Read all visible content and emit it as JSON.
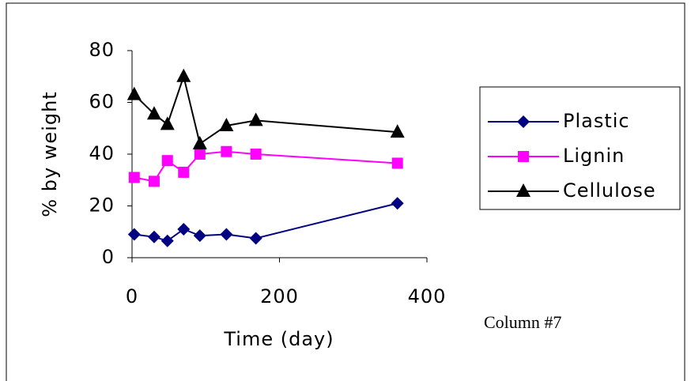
{
  "chart_data": {
    "type": "line",
    "x_label": "Time (day)",
    "y_label": "% by weight",
    "annotation": "Column #7",
    "x": [
      3,
      30,
      48,
      70,
      92,
      128,
      168,
      360
    ],
    "series": [
      {
        "name": "Plastic",
        "color": "#000080",
        "marker": "diamond",
        "values": [
          9,
          8,
          6.5,
          11,
          8.5,
          9,
          7.5,
          21
        ]
      },
      {
        "name": "Lignin",
        "color": "#ff00ff",
        "marker": "square",
        "values": [
          31,
          29.5,
          37.5,
          33,
          40,
          41,
          40,
          36.5
        ]
      },
      {
        "name": "Cellulose",
        "color": "#000000",
        "marker": "triangle",
        "values": [
          63,
          55.5,
          51.5,
          70,
          44,
          51,
          53,
          48.5
        ]
      }
    ],
    "xlim": [
      0,
      400
    ],
    "xticks": [
      0,
      200,
      400
    ],
    "ylim": [
      0,
      80
    ],
    "yticks": [
      0,
      20,
      40,
      60,
      80
    ],
    "legend": "right",
    "grid": false
  }
}
